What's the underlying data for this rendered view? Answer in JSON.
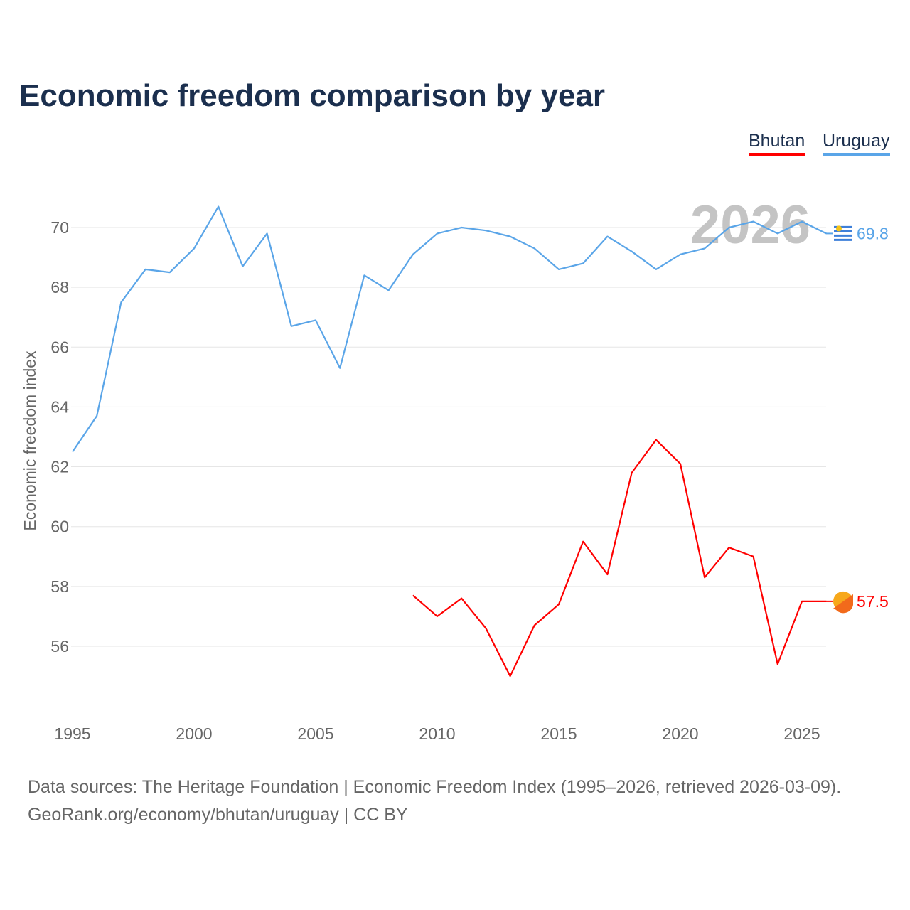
{
  "title": "Economic freedom comparison by year",
  "legend": [
    {
      "name": "Bhutan",
      "color": "#ff0000"
    },
    {
      "name": "Uruguay",
      "color": "#5aa5e8"
    }
  ],
  "source_line1": "Data sources: The Heritage Foundation | Economic Freedom Index (1995–2026, retrieved 2026-03-09).",
  "source_line2": "GeoRank.org/economy/bhutan/uruguay | CC BY",
  "chart_data": {
    "type": "line",
    "title": "Economic freedom comparison by year",
    "ylabel": "Economic freedom index",
    "xlabel": "",
    "watermark_year": "2026",
    "xlim": [
      1995,
      2026
    ],
    "ylim": [
      54,
      71.5
    ],
    "xticks": [
      1995,
      2000,
      2005,
      2010,
      2015,
      2020,
      2025
    ],
    "yticks": [
      56,
      58,
      60,
      62,
      64,
      66,
      68,
      70
    ],
    "grid": true,
    "legend_position": "top-right",
    "series": [
      {
        "name": "Uruguay",
        "color": "#5aa5e8",
        "end_label": "69.8",
        "x": [
          1995,
          1996,
          1997,
          1998,
          1999,
          2000,
          2001,
          2002,
          2003,
          2004,
          2005,
          2006,
          2007,
          2008,
          2009,
          2010,
          2011,
          2012,
          2013,
          2014,
          2015,
          2016,
          2017,
          2018,
          2019,
          2020,
          2021,
          2022,
          2023,
          2024,
          2025,
          2026
        ],
        "values": [
          62.5,
          63.7,
          67.5,
          68.6,
          68.5,
          69.3,
          70.7,
          68.7,
          69.8,
          66.7,
          66.9,
          65.3,
          68.4,
          67.9,
          69.1,
          69.8,
          70.0,
          69.9,
          69.7,
          69.3,
          68.6,
          68.8,
          69.7,
          69.2,
          68.6,
          69.1,
          69.3,
          70.0,
          70.2,
          69.8,
          70.2,
          69.8
        ]
      },
      {
        "name": "Bhutan",
        "color": "#ff0000",
        "end_label": "57.5",
        "x": [
          2009,
          2010,
          2011,
          2012,
          2013,
          2014,
          2015,
          2016,
          2017,
          2018,
          2019,
          2020,
          2021,
          2022,
          2023,
          2024,
          2025,
          2026
        ],
        "values": [
          57.7,
          57.0,
          57.6,
          56.6,
          55.0,
          56.7,
          57.4,
          59.5,
          58.4,
          61.8,
          62.9,
          62.1,
          58.3,
          59.3,
          59.0,
          55.4,
          57.5,
          57.5
        ]
      }
    ]
  }
}
